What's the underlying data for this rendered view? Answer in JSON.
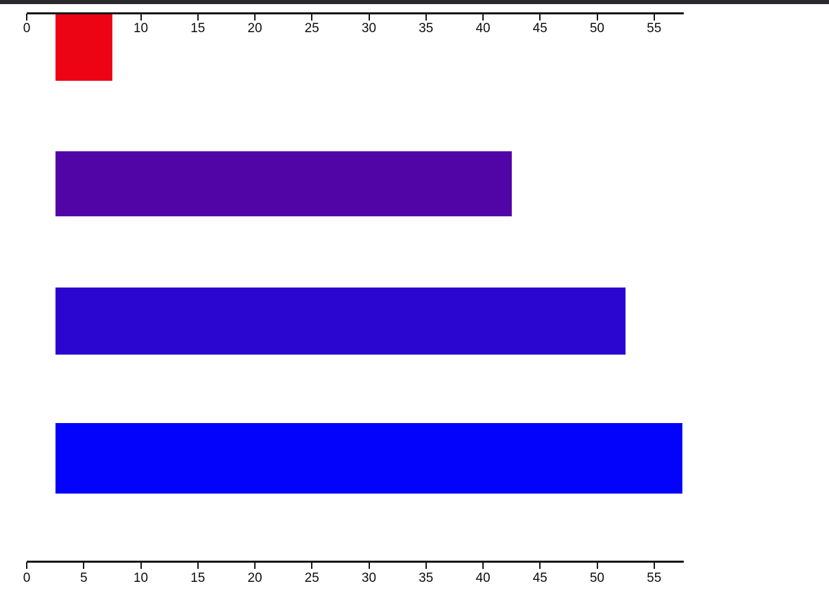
{
  "window": {
    "background_color": "#ffffff",
    "top_border_color": "#2a2a2e"
  },
  "chart_data": {
    "type": "bar",
    "orientation": "horizontal",
    "grid": false,
    "legend": false,
    "xlim": [
      0,
      57.6
    ],
    "axis_color": "#151515",
    "bars": [
      {
        "start": 2.5,
        "end": 7.5,
        "width": 5,
        "color": "#ec0314"
      },
      {
        "start": 2.5,
        "end": 42.5,
        "width": 40,
        "color": "#5205a7"
      },
      {
        "start": 2.5,
        "end": 52.5,
        "width": 50,
        "color": "#2b06d0"
      },
      {
        "start": 2.5,
        "end": 57.5,
        "width": 55,
        "color": "#0303fb"
      }
    ],
    "top_axis": {
      "tick_values": [
        0,
        10,
        15,
        20,
        25,
        30,
        35,
        40,
        45,
        50,
        55
      ],
      "tick_labels": [
        "0",
        "10",
        "15",
        "20",
        "25",
        "30",
        "35",
        "40",
        "45",
        "50",
        "55"
      ]
    },
    "bottom_axis": {
      "tick_values": [
        0,
        5,
        10,
        15,
        20,
        25,
        30,
        35,
        40,
        45,
        50,
        55
      ],
      "tick_labels": [
        "0",
        "5",
        "10",
        "15",
        "20",
        "25",
        "30",
        "35",
        "40",
        "45",
        "50",
        "55"
      ]
    }
  }
}
